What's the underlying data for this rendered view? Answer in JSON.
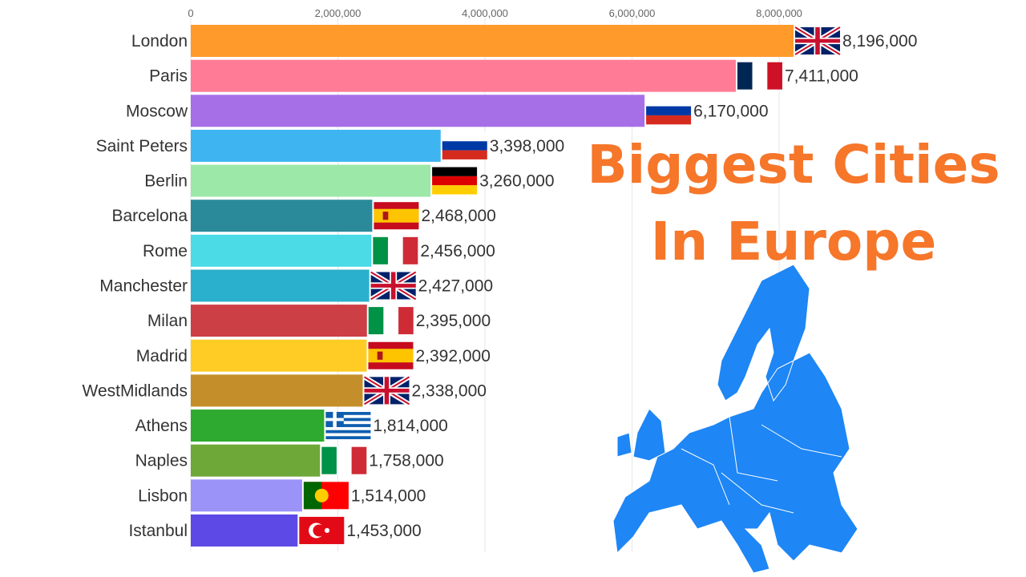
{
  "chart_data": {
    "type": "bar",
    "orientation": "horizontal",
    "title": "Biggest Cities In Europe",
    "title_lines": [
      "Biggest Cities",
      "In Europe"
    ],
    "xlim": [
      0,
      9000000
    ],
    "xticks": [
      0,
      2000000,
      4000000,
      6000000,
      8000000
    ],
    "xtick_labels": [
      "0",
      "2,000,000",
      "4,000,000",
      "6,000,000",
      "8,000,000"
    ],
    "grid": true,
    "categories": [
      "London",
      "Paris",
      "Moscow",
      "Saint Peters",
      "Berlin",
      "Barcelona",
      "Rome",
      "Manchester",
      "Milan",
      "Madrid",
      "WestMidlands",
      "Athens",
      "Naples",
      "Lisbon",
      "Istanbul"
    ],
    "values": [
      8196000,
      7411000,
      6170000,
      3398000,
      3260000,
      2468000,
      2456000,
      2427000,
      2395000,
      2392000,
      2338000,
      1814000,
      1758000,
      1514000,
      1453000
    ],
    "value_labels": [
      "8,196,000",
      "7,411,000",
      "6,170,000",
      "3,398,000",
      "3,260,000",
      "2,468,000",
      "2,456,000",
      "2,427,000",
      "2,395,000",
      "2,392,000",
      "2,338,000",
      "1,814,000",
      "1,758,000",
      "1,514,000",
      "1,453,000"
    ],
    "colors": [
      "#FF9A2B",
      "#FF7B96",
      "#A66FE8",
      "#3EB5F0",
      "#9CE8A8",
      "#2A8A9A",
      "#4ADBE6",
      "#2AB0CC",
      "#CC3F45",
      "#FFCC26",
      "#C48F2A",
      "#2EAA30",
      "#6DA838",
      "#9B93F8",
      "#5D49E6"
    ],
    "flags": [
      "uk",
      "france",
      "russia",
      "russia",
      "germany",
      "spain",
      "italy",
      "uk",
      "italy",
      "spain",
      "uk",
      "greece",
      "italy",
      "portugal",
      "turkey"
    ]
  },
  "map_color": "#1E86F5"
}
